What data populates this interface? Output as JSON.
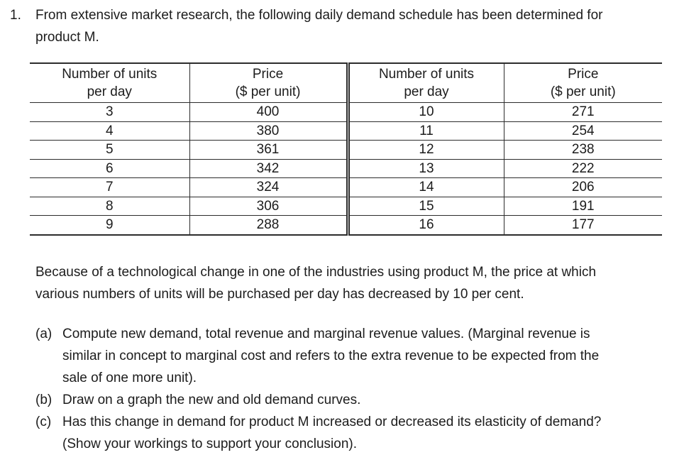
{
  "page": {
    "background": "#ffffff",
    "text_color": "#1c1c1c",
    "rule_color": "#2c2c2c"
  },
  "problem": {
    "number": "1.",
    "intro_lines": [
      "From extensive market research, the following daily demand schedule has been determined for",
      "product M."
    ]
  },
  "table": {
    "header": {
      "units_line1": "Number of units",
      "units_line2": "per day",
      "price_line1": "Price",
      "price_line2": "($ per unit)"
    },
    "left_rows": [
      [
        "3",
        "400"
      ],
      [
        "4",
        "380"
      ],
      [
        "5",
        "361"
      ],
      [
        "6",
        "342"
      ],
      [
        "7",
        "324"
      ],
      [
        "8",
        "306"
      ],
      [
        "9",
        "288"
      ]
    ],
    "right_rows": [
      [
        "10",
        "271"
      ],
      [
        "11",
        "254"
      ],
      [
        "12",
        "238"
      ],
      [
        "13",
        "222"
      ],
      [
        "14",
        "206"
      ],
      [
        "15",
        "191"
      ],
      [
        "16",
        "177"
      ]
    ]
  },
  "paragraph2_lines": [
    "Because of a technological change in one of the industries using product M, the price at which",
    "various numbers of units will be purchased per day has decreased by 10 per cent."
  ],
  "questions": [
    {
      "label": "(a)",
      "lines": [
        "Compute new demand, total revenue and marginal revenue values. (Marginal revenue is",
        "similar in concept to marginal cost and refers to the extra revenue to be expected from the",
        "sale of one more unit)."
      ]
    },
    {
      "label": "(b)",
      "lines": [
        "Draw on a graph the new and old demand curves."
      ]
    },
    {
      "label": "(c)",
      "lines": [
        "Has this change in demand for product M increased or decreased its elasticity of demand?",
        "(Show your workings to support your conclusion)."
      ]
    }
  ]
}
